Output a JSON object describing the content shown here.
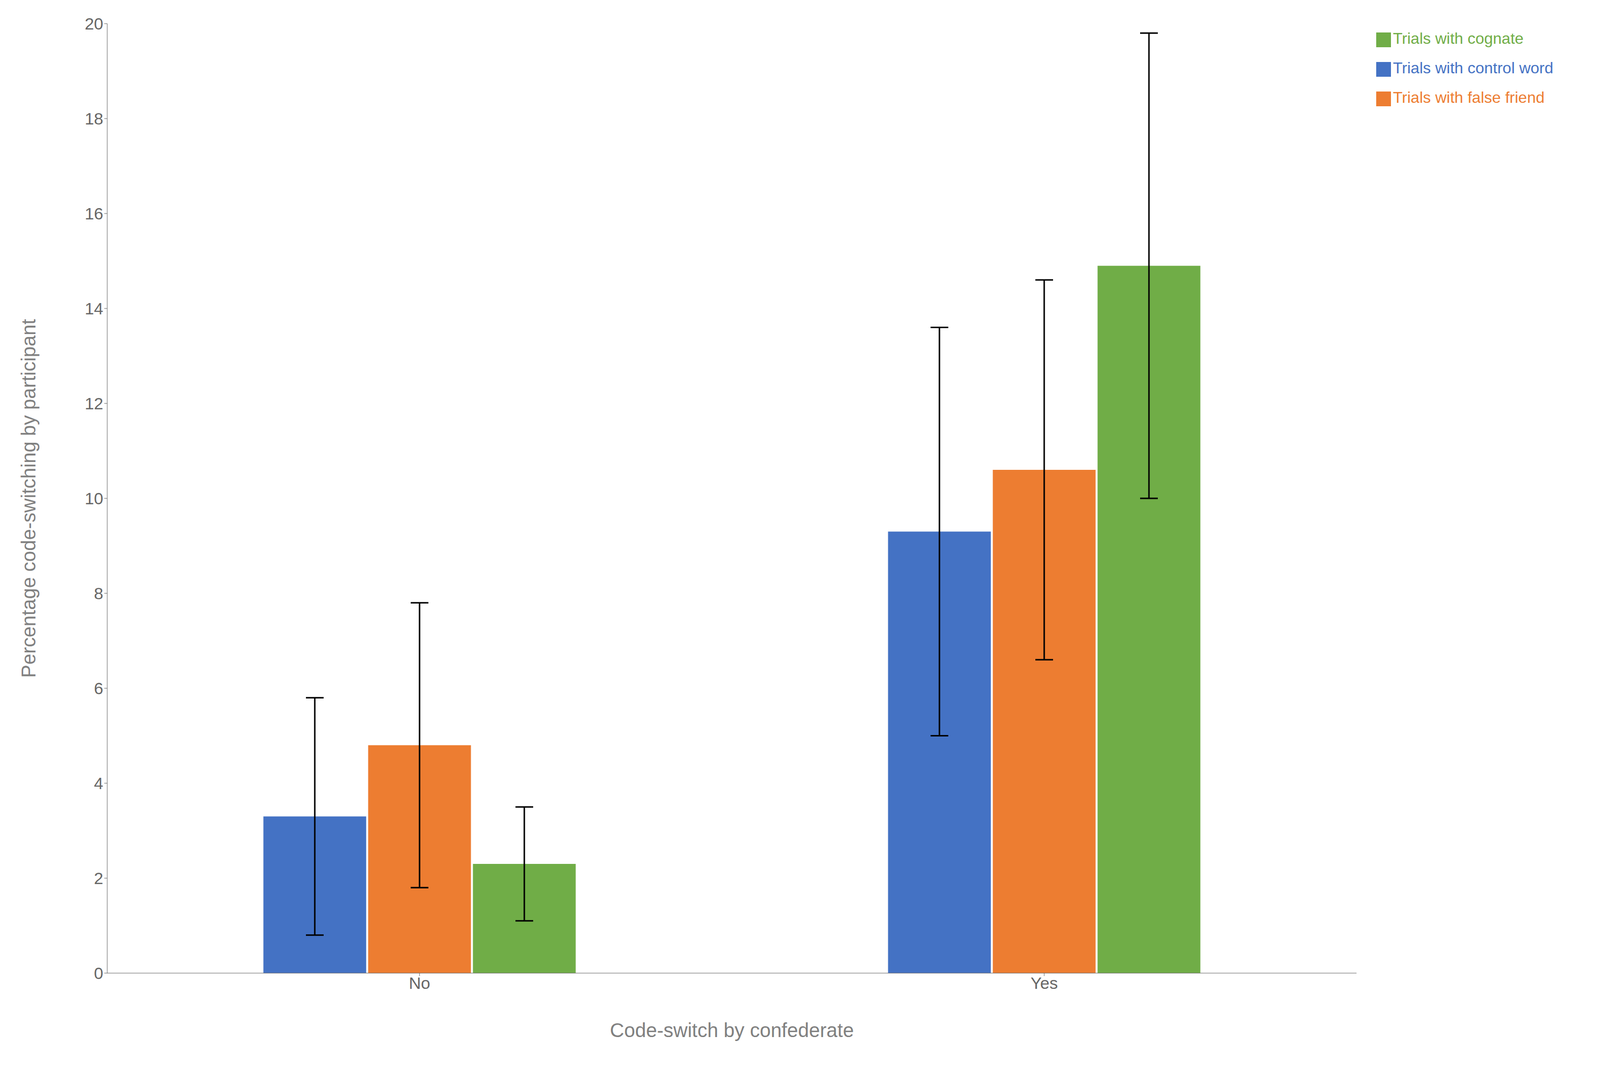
{
  "chart_data": {
    "type": "bar",
    "categories": [
      "No",
      "Yes"
    ],
    "series": [
      {
        "name": "Trials with control word",
        "color": "#4472C4",
        "values": [
          3.3,
          9.3
        ],
        "errors": [
          2.5,
          4.3
        ]
      },
      {
        "name": "Trials with false friend",
        "color": "#ED7D31",
        "values": [
          4.8,
          10.6
        ],
        "errors": [
          3.0,
          4.0
        ]
      },
      {
        "name": "Trials with cognate",
        "color": "#70AD47",
        "values": [
          2.3,
          14.9
        ],
        "errors": [
          1.2,
          4.9
        ]
      }
    ],
    "xlabel": "Code-switch by confederate",
    "ylabel": "Percentage code-switching by participant",
    "ylim": [
      0,
      20
    ],
    "yticks": [
      0,
      2,
      4,
      6,
      8,
      10,
      12,
      14,
      16,
      18,
      20
    ],
    "grid": false,
    "legend": "upper right"
  }
}
